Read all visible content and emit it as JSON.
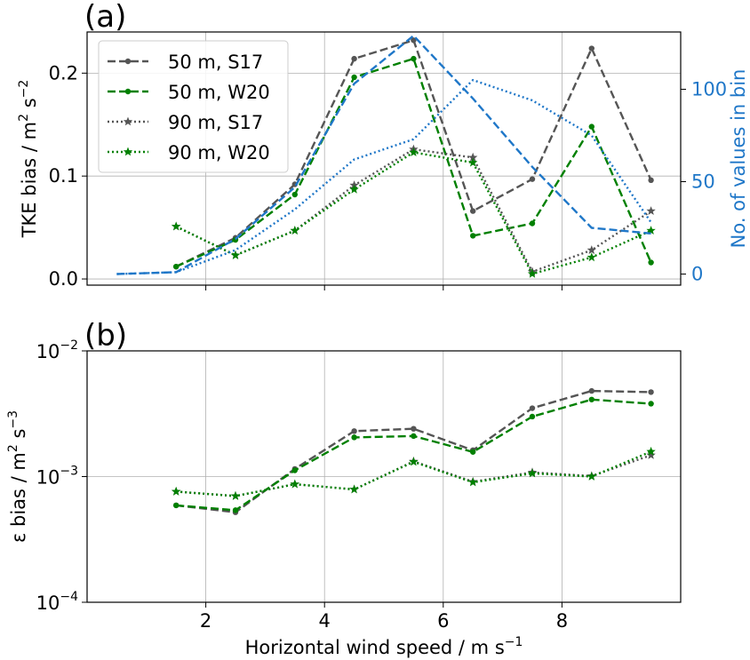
{
  "chart_data": [
    {
      "panel_label": "(a)",
      "type": "line",
      "ylabel": "TKE bias / m² s⁻²",
      "ylabel_parts": [
        "TKE bias / m",
        "2",
        " s",
        "−2"
      ],
      "ylabel_right": "No. of values in bin",
      "xlim": [
        0.0,
        10.0
      ],
      "ylim": [
        -0.006,
        0.24
      ],
      "ylim_right": [
        -6,
        131
      ],
      "yticks": [
        0.0,
        0.1,
        0.2
      ],
      "ytick_labels": [
        "0.0",
        "0.1",
        "0.2"
      ],
      "yticks_right": [
        0,
        50,
        100
      ],
      "ytick_labels_right": [
        "0",
        "50",
        "100"
      ],
      "grid": true,
      "legend_position": "upper-left",
      "colors": {
        "gray": "#555555",
        "green": "#008000",
        "blue": "#1f77c8"
      },
      "series": [
        {
          "name": "50 m, S17",
          "axis": "left",
          "color": "#555555",
          "dash": "dashed",
          "marker": "dot",
          "x": [
            1.5,
            2.5,
            3.5,
            4.5,
            5.5,
            6.5,
            7.5,
            8.5,
            9.5
          ],
          "y": [
            0.012,
            0.04,
            0.092,
            0.214,
            0.232,
            0.066,
            0.097,
            0.224,
            0.096
          ]
        },
        {
          "name": "50 m, W20",
          "axis": "left",
          "color": "#008000",
          "dash": "dashed",
          "marker": "dot",
          "x": [
            1.5,
            2.5,
            3.5,
            4.5,
            5.5,
            6.5,
            7.5,
            8.5,
            9.5
          ],
          "y": [
            0.012,
            0.038,
            0.082,
            0.196,
            0.214,
            0.042,
            0.054,
            0.148,
            0.016
          ]
        },
        {
          "name": "90 m, S17",
          "axis": "left",
          "color": "#555555",
          "dash": "dotted",
          "marker": "star",
          "x": [
            1.5,
            2.5,
            3.5,
            4.5,
            5.5,
            6.5,
            7.5,
            8.5,
            9.5
          ],
          "y": [
            0.051,
            0.023,
            0.047,
            0.091,
            0.126,
            0.118,
            0.007,
            0.028,
            0.066
          ]
        },
        {
          "name": "90 m, W20",
          "axis": "left",
          "color": "#008000",
          "dash": "dotted",
          "marker": "star",
          "x": [
            1.5,
            2.5,
            3.5,
            4.5,
            5.5,
            6.5,
            7.5,
            8.5,
            9.5
          ],
          "y": [
            0.051,
            0.023,
            0.047,
            0.087,
            0.123,
            0.113,
            0.005,
            0.021,
            0.047
          ]
        },
        {
          "axis": "right",
          "color": "#1f77c8",
          "dash": "dashed",
          "marker": "none",
          "x": [
            0.5,
            1.5,
            2.5,
            3.5,
            4.5,
            5.5,
            6.5,
            7.5,
            8.5,
            9.5
          ],
          "y": [
            0,
            1,
            19,
            47,
            103,
            129,
            95,
            58,
            25,
            22
          ]
        },
        {
          "axis": "right",
          "color": "#1f77c8",
          "dash": "dotted",
          "marker": "none",
          "x": [
            0.5,
            1.5,
            2.5,
            3.5,
            4.5,
            5.5,
            6.5,
            7.5,
            8.5,
            9.5
          ],
          "y": [
            0,
            1,
            13,
            35,
            62,
            73,
            105,
            94,
            75,
            28
          ]
        }
      ]
    },
    {
      "panel_label": "(b)",
      "type": "line",
      "ylabel": "ε bias / m² s⁻³",
      "ylabel_parts": [
        "ε bias / m",
        "2",
        " s",
        "−3"
      ],
      "xlabel": "Horizontal wind speed / m s⁻¹",
      "xlabel_parts": [
        "Horizontal wind speed / m s",
        "−1"
      ],
      "xlim": [
        0.0,
        10.0
      ],
      "xticks": [
        2,
        4,
        6,
        8
      ],
      "xtick_labels": [
        "2",
        "4",
        "6",
        "8"
      ],
      "yscale": "log",
      "ylim": [
        0.0001,
        0.01
      ],
      "yticks": [
        0.0001,
        0.001,
        0.01
      ],
      "ytick_labels": [
        {
          "base": "10",
          "exp": "−4"
        },
        {
          "base": "10",
          "exp": "−3"
        },
        {
          "base": "10",
          "exp": "−2"
        }
      ],
      "grid": true,
      "series": [
        {
          "name": "50 m, S17",
          "color": "#555555",
          "dash": "dashed",
          "marker": "dot",
          "x": [
            1.5,
            2.5,
            3.5,
            4.5,
            5.5,
            6.5,
            7.5,
            8.5,
            9.5
          ],
          "y": [
            0.00059,
            0.00052,
            0.00115,
            0.0023,
            0.0024,
            0.00162,
            0.0035,
            0.0048,
            0.0047
          ]
        },
        {
          "name": "50 m, W20",
          "color": "#008000",
          "dash": "dashed",
          "marker": "dot",
          "x": [
            1.5,
            2.5,
            3.5,
            4.5,
            5.5,
            6.5,
            7.5,
            8.5,
            9.5
          ],
          "y": [
            0.00059,
            0.00054,
            0.00112,
            0.00205,
            0.0021,
            0.00157,
            0.003,
            0.0041,
            0.0038
          ]
        },
        {
          "name": "90 m, S17",
          "color": "#555555",
          "dash": "dotted",
          "marker": "star",
          "x": [
            1.5,
            2.5,
            3.5,
            4.5,
            5.5,
            6.5,
            7.5,
            8.5,
            9.5
          ],
          "y": [
            0.00076,
            0.0007,
            0.00087,
            0.00079,
            0.00132,
            0.00091,
            0.00108,
            0.00101,
            0.00148
          ]
        },
        {
          "name": "90 m, W20",
          "color": "#008000",
          "dash": "dotted",
          "marker": "star",
          "x": [
            1.5,
            2.5,
            3.5,
            4.5,
            5.5,
            6.5,
            7.5,
            8.5,
            9.5
          ],
          "y": [
            0.00076,
            0.0007,
            0.00087,
            0.00079,
            0.00131,
            0.0009,
            0.00106,
            0.001,
            0.00158
          ]
        }
      ]
    }
  ]
}
